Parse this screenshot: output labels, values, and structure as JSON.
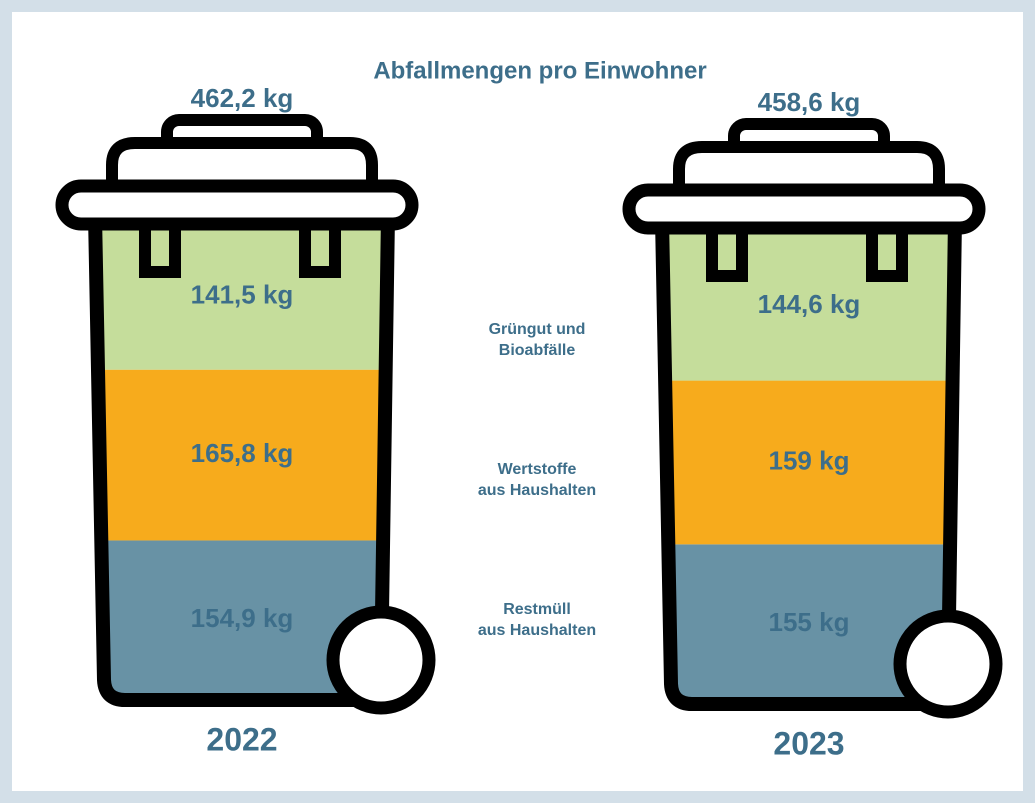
{
  "chart_data": {
    "type": "bar",
    "stacked": true,
    "title": "Abfallmengen pro Einwohner",
    "categories": [
      "2022",
      "2023"
    ],
    "series": [
      {
        "name": "Grüngut und\nBioabfälle",
        "color": "#c5dd9b",
        "values": [
          141.5,
          144.6
        ],
        "value_labels": [
          "141,5 kg",
          "144,6 kg"
        ]
      },
      {
        "name": "Wertstoffe\naus Haushalten",
        "color": "#f7ab1c",
        "values": [
          165.8,
          159
        ],
        "value_labels": [
          "165,8 kg",
          "159 kg"
        ]
      },
      {
        "name": "Restmüll\naus Haushalten",
        "color": "#6892a5",
        "values": [
          154.9,
          155
        ],
        "value_labels": [
          "154,9 kg",
          "155 kg"
        ]
      }
    ],
    "totals": {
      "values": [
        462.2,
        458.6
      ],
      "value_labels": [
        "462,2 kg",
        "458,6 kg"
      ]
    }
  }
}
